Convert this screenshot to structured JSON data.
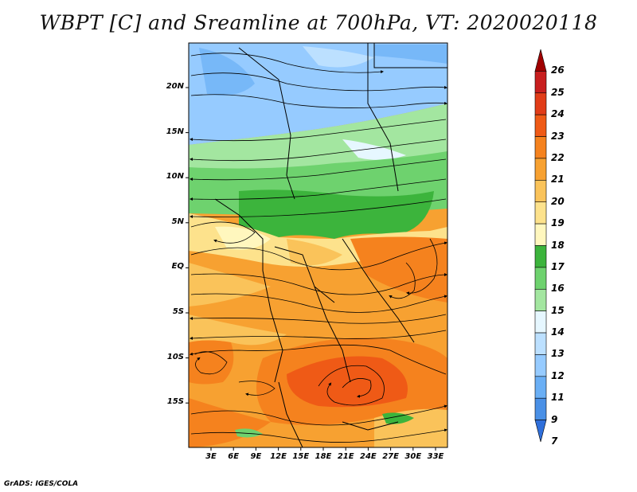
{
  "title": "WBPT [C] and Sreamline at 700hPa, VT: 2020020118",
  "credit": "GrADS: IGES/COLA",
  "lat_ticks": [
    {
      "label": "20N",
      "value": 20
    },
    {
      "label": "15N",
      "value": 15
    },
    {
      "label": "10N",
      "value": 10
    },
    {
      "label": "5N",
      "value": 5
    },
    {
      "label": "EQ",
      "value": 0
    },
    {
      "label": "5S",
      "value": -5
    },
    {
      "label": "10S",
      "value": -10
    },
    {
      "label": "15S",
      "value": -15
    }
  ],
  "lon_ticks": [
    {
      "label": "3E",
      "value": 3
    },
    {
      "label": "6E",
      "value": 6
    },
    {
      "label": "9E",
      "value": 9
    },
    {
      "label": "12E",
      "value": 12
    },
    {
      "label": "15E",
      "value": 15
    },
    {
      "label": "18E",
      "value": 18
    },
    {
      "label": "21E",
      "value": 21
    },
    {
      "label": "24E",
      "value": 24
    },
    {
      "label": "27E",
      "value": 27
    },
    {
      "label": "30E",
      "value": 30
    },
    {
      "label": "33E",
      "value": 33
    }
  ],
  "colorbar": {
    "labels": [
      "26",
      "25",
      "24",
      "23",
      "22",
      "21",
      "20",
      "19",
      "18",
      "17",
      "16",
      "15",
      "14",
      "13",
      "12",
      "11",
      "9",
      "7"
    ],
    "colors": [
      "#a00000",
      "#c81e1e",
      "#e13c18",
      "#ef5a16",
      "#f5821e",
      "#f7a131",
      "#fac35a",
      "#fde28c",
      "#fff7be",
      "#3cb43c",
      "#6ed26e",
      "#a3e6a0",
      "#e6f7ff",
      "#bce0ff",
      "#96cbff",
      "#6aaff5",
      "#4a90e6",
      "#2f6fdb"
    ]
  },
  "legend": {
    "field": "WBPT [C]",
    "colors": {
      "c12": "#96cbff",
      "c13": "#bce0ff",
      "c15": "#a3e6a0",
      "c16": "#6ed26e",
      "c17": "#3cb43c",
      "c18": "#fff7be",
      "c19": "#fde28c",
      "c20": "#fac35a",
      "c21": "#f7a131",
      "c22": "#f5821e",
      "c23": "#ef5a16"
    }
  }
}
